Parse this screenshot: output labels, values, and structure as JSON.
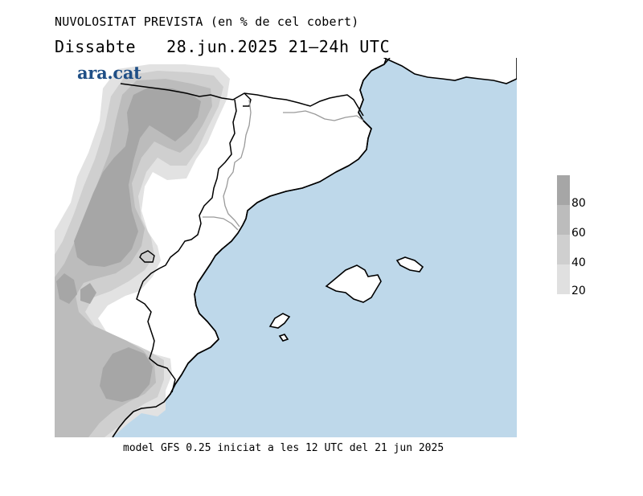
{
  "header": {
    "title": "NUVOLOSITAT PREVISTA (en % de cel cobert)",
    "day": "Dissabte",
    "date": "28.jun.2025",
    "time_range": "21—24h UTC"
  },
  "logo": {
    "text": "ara.cat",
    "color": "#1f4f86"
  },
  "legend": {
    "ticks": [
      "80",
      "60",
      "40",
      "20"
    ],
    "colors": [
      "#a6a6a6",
      "#bcbcbc",
      "#cfcfcf",
      "#e0e0e0"
    ]
  },
  "map": {
    "sea_color": "#bed8ea",
    "land_color": "#ffffff",
    "cloud_colors": [
      "#e2e2e2",
      "#cfcfcf",
      "#bcbcbc",
      "#a6a6a6"
    ]
  },
  "footer": {
    "text": "model GFS 0.25 iniciat a les 12 UTC del 21 jun 2025"
  }
}
